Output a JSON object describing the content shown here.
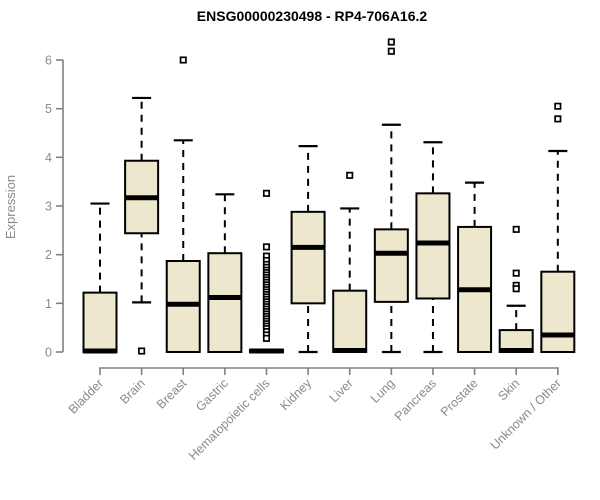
{
  "title": "ENSG00000230498 - RP4-706A16.2",
  "colors": {
    "background": "#ffffff",
    "box_fill": "#EDE8CD",
    "box_border": "#000000",
    "median": "#000000",
    "whisker": "#000000",
    "outlier": "#000000",
    "axis_line": "#808080",
    "tick_text": "#8a8a8a",
    "title_text": "#000000"
  },
  "chart_data": {
    "type": "boxplot",
    "title": "ENSG00000230498 - RP4-706A16.2",
    "xlabel": "",
    "ylabel": "Expression",
    "ylim": [
      0,
      6
    ],
    "yticks": [
      0,
      1,
      2,
      3,
      4,
      5,
      6
    ],
    "grid": false,
    "legend": null,
    "categories": [
      "Bladder",
      "Brain",
      "Breast",
      "Gastric",
      "Hematopoietic cells",
      "Kidney",
      "Liver",
      "Lung",
      "Pancreas",
      "Prostate",
      "Skin",
      "Unknown / Other"
    ],
    "series": [
      {
        "name": "Bladder",
        "whisker_low": 0,
        "q1": 0,
        "median": 0.02,
        "q3": 1.22,
        "whisker_high": 3.05,
        "outliers": []
      },
      {
        "name": "Brain",
        "whisker_low": 1.02,
        "q1": 2.44,
        "median": 3.17,
        "q3": 3.93,
        "whisker_high": 5.22,
        "outliers": [
          0.02
        ]
      },
      {
        "name": "Breast",
        "whisker_low": 0,
        "q1": 0,
        "median": 0.98,
        "q3": 1.87,
        "whisker_high": 4.35,
        "outliers": [
          6.0
        ]
      },
      {
        "name": "Gastric",
        "whisker_low": 0,
        "q1": 0,
        "median": 1.12,
        "q3": 2.03,
        "whisker_high": 3.24,
        "outliers": []
      },
      {
        "name": "Hematopoietic cells",
        "whisker_low": 0,
        "q1": 0,
        "median": 0.02,
        "q3": 0.04,
        "whisker_high": 0.04,
        "outliers": [
          3.26,
          2.16,
          1.97,
          1.88,
          1.8,
          1.74,
          1.68,
          1.63,
          1.58,
          1.53,
          1.48,
          1.43,
          1.38,
          1.33,
          1.28,
          1.23,
          1.18,
          1.13,
          1.08,
          1.03,
          0.98,
          0.93,
          0.88,
          0.83,
          0.78,
          0.73,
          0.68,
          0.63,
          0.58,
          0.53,
          0.48,
          0.42,
          0.35,
          0.28
        ]
      },
      {
        "name": "Kidney",
        "whisker_low": 0,
        "q1": 1.0,
        "median": 2.15,
        "q3": 2.88,
        "whisker_high": 4.23,
        "outliers": []
      },
      {
        "name": "Liver",
        "whisker_low": 0,
        "q1": 0,
        "median": 0.03,
        "q3": 1.26,
        "whisker_high": 2.95,
        "outliers": [
          3.63
        ]
      },
      {
        "name": "Lung",
        "whisker_low": 0,
        "q1": 1.03,
        "median": 2.03,
        "q3": 2.52,
        "whisker_high": 4.67,
        "outliers": [
          6.18,
          6.37
        ]
      },
      {
        "name": "Pancreas",
        "whisker_low": 0,
        "q1": 1.1,
        "median": 2.24,
        "q3": 3.26,
        "whisker_high": 4.31,
        "outliers": []
      },
      {
        "name": "Prostate",
        "whisker_low": 0,
        "q1": 0,
        "median": 1.28,
        "q3": 2.57,
        "whisker_high": 3.48,
        "outliers": []
      },
      {
        "name": "Skin",
        "whisker_low": 0,
        "q1": 0,
        "median": 0.03,
        "q3": 0.45,
        "whisker_high": 0.95,
        "outliers": [
          2.52,
          1.62,
          1.37,
          1.3
        ]
      },
      {
        "name": "Unknown / Other",
        "whisker_low": 0,
        "q1": 0,
        "median": 0.35,
        "q3": 1.65,
        "whisker_high": 4.13,
        "outliers": [
          5.05,
          4.79
        ]
      }
    ]
  }
}
